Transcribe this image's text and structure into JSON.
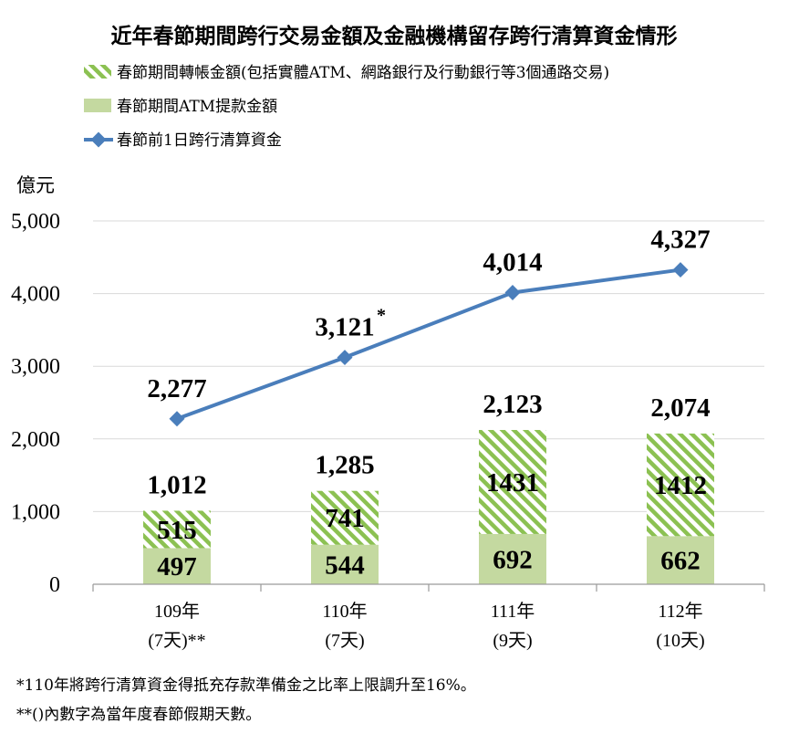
{
  "chart_data": {
    "type": "bar",
    "title": "近年春節期間跨行交易金額及金融機構留存跨行清算資金情形",
    "ylabel": "億元",
    "ylim": [
      0,
      5000
    ],
    "yticks": [
      "0",
      "1,000",
      "2,000",
      "3,000",
      "4,000",
      "5,000"
    ],
    "grid": true,
    "legend_position": "top-left",
    "categories": [
      {
        "line1": "109年",
        "line2": "(7天)**"
      },
      {
        "line1": "110年",
        "line2": "(7天)"
      },
      {
        "line1": "111年",
        "line2": "(9天)"
      },
      {
        "line1": "112年",
        "line2": "(10天)"
      }
    ],
    "series": [
      {
        "name": "春節期間ATM提款金額",
        "kind": "stacked-bar",
        "values": [
          497,
          544,
          692,
          662
        ],
        "labels": [
          "497",
          "544",
          "692",
          "662"
        ],
        "color": "#c4d9a0"
      },
      {
        "name": "春節期間轉帳金額(包括實體ATM、網路銀行及行動銀行等3個通路交易)",
        "kind": "stacked-bar-hatched",
        "values": [
          515,
          741,
          1431,
          1412
        ],
        "labels": [
          "515",
          "741",
          "1431",
          "1412"
        ],
        "color": "#8cc152"
      },
      {
        "name": "春節前1日跨行清算資金",
        "kind": "line",
        "values": [
          2277,
          3121,
          4014,
          4327
        ],
        "labels": [
          "2,277",
          "3,121",
          "4,014",
          "4,327"
        ],
        "color": "#4a7ebb"
      }
    ],
    "totals": {
      "values": [
        1012,
        1285,
        2123,
        2074
      ],
      "labels": [
        "1,012",
        "1,285",
        "2,123",
        "2,074"
      ]
    },
    "annotations": [
      {
        "category_index": 1,
        "text": "*"
      }
    ],
    "footnotes": [
      "*110年將跨行清算資金得抵充存款準備金之比率上限調升至16%。",
      "**()內數字為當年度春節假期天數。"
    ]
  }
}
